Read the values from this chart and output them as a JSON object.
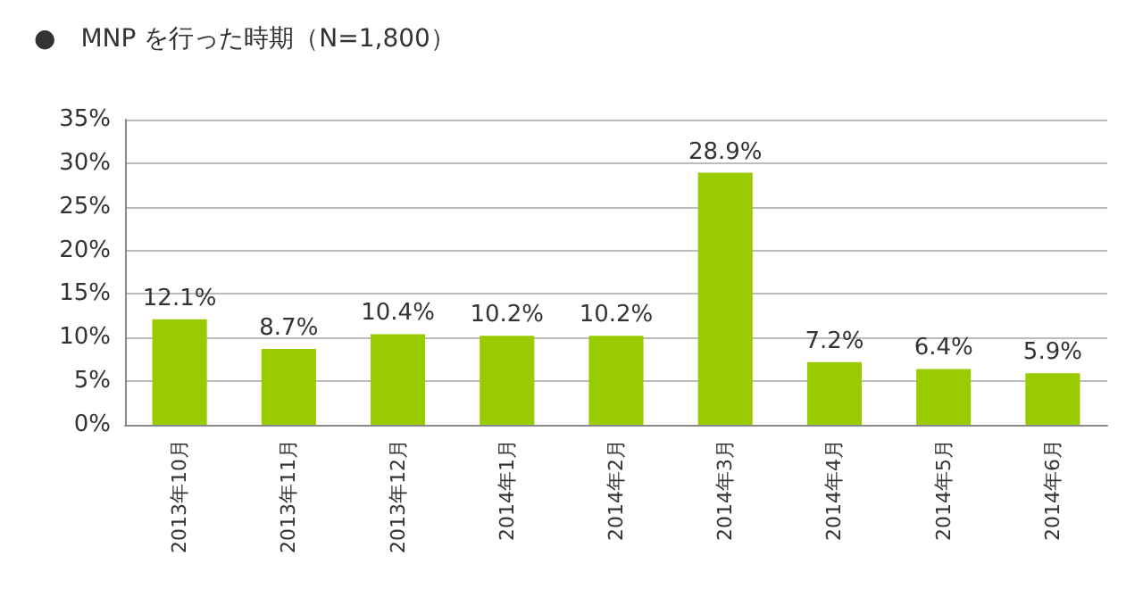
{
  "chart_data": {
    "type": "bar",
    "title": "●　MNP を行った時期（N=1,800）",
    "categories": [
      "2013年10月",
      "2013年11月",
      "2013年12月",
      "2014年1月",
      "2014年2月",
      "2014年3月",
      "2014年4月",
      "2014年5月",
      "2014年6月"
    ],
    "values": [
      12.1,
      8.7,
      10.4,
      10.2,
      10.2,
      28.9,
      7.2,
      6.4,
      5.9
    ],
    "value_labels": [
      "12.1%",
      "8.7%",
      "10.4%",
      "10.2%",
      "10.2%",
      "28.9%",
      "7.2%",
      "6.4%",
      "5.9%"
    ],
    "color": "#99cc00",
    "ylim": [
      0,
      35
    ],
    "yticks": [
      {
        "value": 0,
        "label": "0%"
      },
      {
        "value": 5,
        "label": "5%"
      },
      {
        "value": 10,
        "label": "10%"
      },
      {
        "value": 15,
        "label": "15%"
      },
      {
        "value": 20,
        "label": "20%"
      },
      {
        "value": 25,
        "label": "25%"
      },
      {
        "value": 30,
        "label": "30%"
      },
      {
        "value": 35,
        "label": "35%"
      }
    ],
    "grid": "y"
  }
}
